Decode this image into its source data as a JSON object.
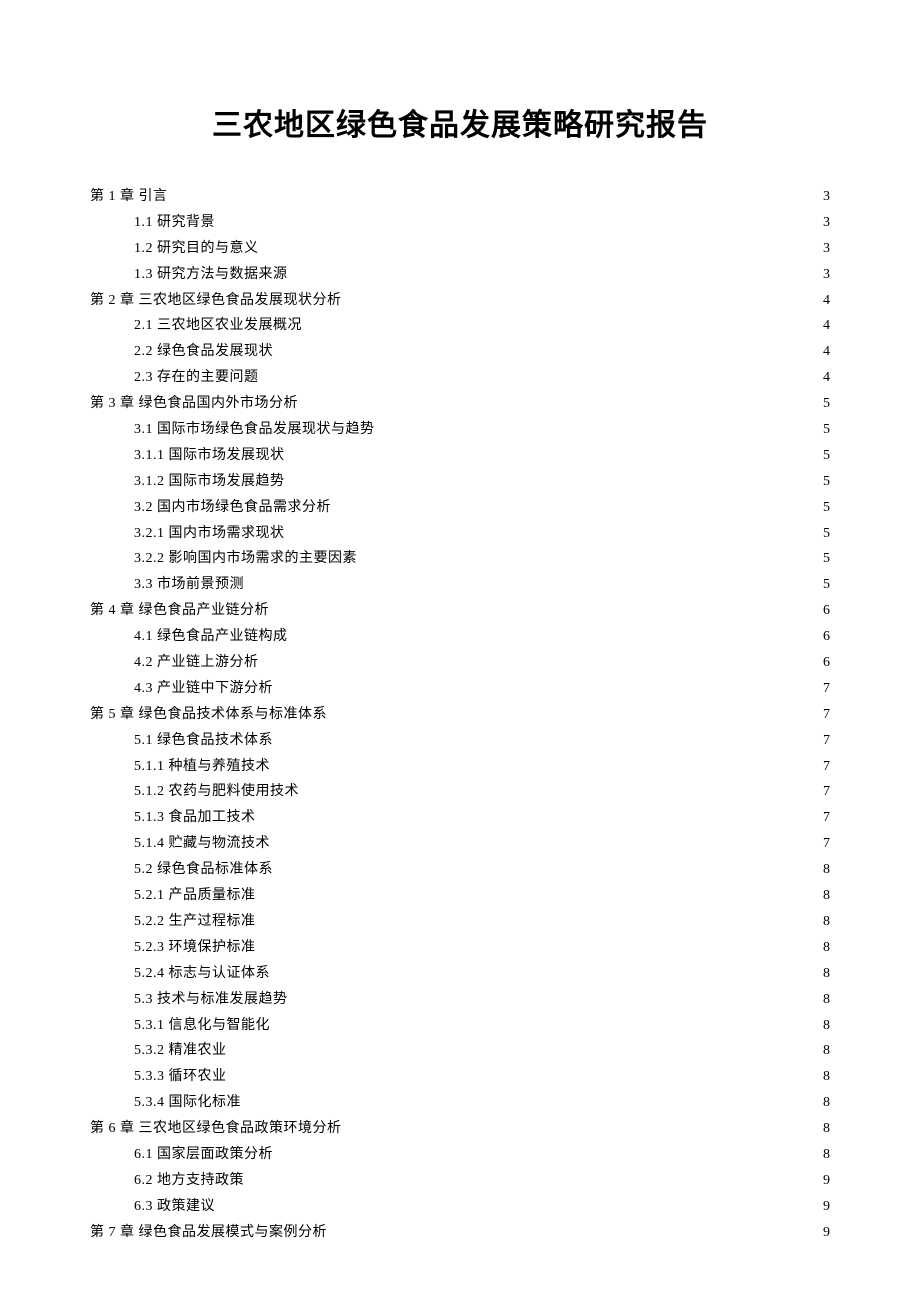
{
  "title": "三农地区绿色食品发展策略研究报告",
  "toc": [
    {
      "level": 1,
      "label": "第 1 章  引言",
      "page": "3"
    },
    {
      "level": 2,
      "label": "1.1 研究背景",
      "page": "3"
    },
    {
      "level": 2,
      "label": "1.2 研究目的与意义",
      "page": "3"
    },
    {
      "level": 2,
      "label": "1.3 研究方法与数据来源",
      "page": "3"
    },
    {
      "level": 1,
      "label": "第 2 章  三农地区绿色食品发展现状分析",
      "page": "4"
    },
    {
      "level": 2,
      "label": "2.1 三农地区农业发展概况",
      "page": "4"
    },
    {
      "level": 2,
      "label": "2.2 绿色食品发展现状",
      "page": "4"
    },
    {
      "level": 2,
      "label": "2.3 存在的主要问题",
      "page": "4"
    },
    {
      "level": 1,
      "label": "第 3 章  绿色食品国内外市场分析",
      "page": "5"
    },
    {
      "level": 2,
      "label": "3.1 国际市场绿色食品发展现状与趋势",
      "page": "5"
    },
    {
      "level": 2,
      "label": "3.1.1 国际市场发展现状",
      "page": "5"
    },
    {
      "level": 2,
      "label": "3.1.2 国际市场发展趋势",
      "page": "5"
    },
    {
      "level": 2,
      "label": "3.2 国内市场绿色食品需求分析",
      "page": "5"
    },
    {
      "level": 2,
      "label": "3.2.1 国内市场需求现状",
      "page": "5"
    },
    {
      "level": 2,
      "label": "3.2.2 影响国内市场需求的主要因素",
      "page": "5"
    },
    {
      "level": 2,
      "label": "3.3 市场前景预测",
      "page": "5"
    },
    {
      "level": 1,
      "label": "第 4 章  绿色食品产业链分析",
      "page": "6"
    },
    {
      "level": 2,
      "label": "4.1 绿色食品产业链构成",
      "page": "6"
    },
    {
      "level": 2,
      "label": "4.2 产业链上游分析",
      "page": "6"
    },
    {
      "level": 2,
      "label": "4.3 产业链中下游分析",
      "page": "7"
    },
    {
      "level": 1,
      "label": "第 5 章  绿色食品技术体系与标准体系",
      "page": "7"
    },
    {
      "level": 2,
      "label": "5.1 绿色食品技术体系",
      "page": "7"
    },
    {
      "level": 2,
      "label": "5.1.1 种植与养殖技术",
      "page": "7"
    },
    {
      "level": 2,
      "label": "5.1.2 农药与肥料使用技术",
      "page": "7"
    },
    {
      "level": 2,
      "label": "5.1.3 食品加工技术",
      "page": "7"
    },
    {
      "level": 2,
      "label": "5.1.4 贮藏与物流技术",
      "page": "7"
    },
    {
      "level": 2,
      "label": "5.2 绿色食品标准体系",
      "page": "8"
    },
    {
      "level": 2,
      "label": "5.2.1 产品质量标准",
      "page": "8"
    },
    {
      "level": 2,
      "label": "5.2.2 生产过程标准",
      "page": "8"
    },
    {
      "level": 2,
      "label": "5.2.3 环境保护标准",
      "page": "8"
    },
    {
      "level": 2,
      "label": "5.2.4 标志与认证体系",
      "page": "8"
    },
    {
      "level": 2,
      "label": "5.3 技术与标准发展趋势",
      "page": "8"
    },
    {
      "level": 2,
      "label": "5.3.1 信息化与智能化",
      "page": "8"
    },
    {
      "level": 2,
      "label": "5.3.2 精准农业",
      "page": "8"
    },
    {
      "level": 2,
      "label": "5.3.3 循环农业",
      "page": "8"
    },
    {
      "level": 2,
      "label": "5.3.4 国际化标准",
      "page": "8"
    },
    {
      "level": 1,
      "label": "第 6 章  三农地区绿色食品政策环境分析",
      "page": "8"
    },
    {
      "level": 2,
      "label": "6.1 国家层面政策分析",
      "page": "8"
    },
    {
      "level": 2,
      "label": "6.2 地方支持政策",
      "page": "9"
    },
    {
      "level": 2,
      "label": "6.3 政策建议",
      "page": "9"
    },
    {
      "level": 1,
      "label": "第 7 章  绿色食品发展模式与案例分析",
      "page": "9"
    }
  ]
}
